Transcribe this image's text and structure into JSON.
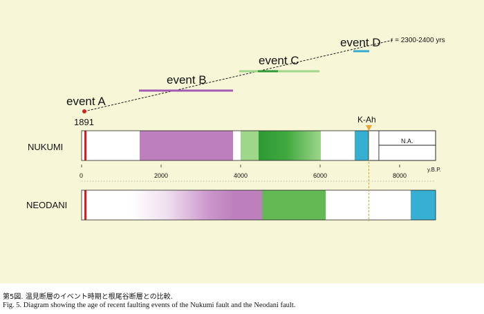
{
  "colors": {
    "panel_bg": "#f7f7d8",
    "event_b": "#a05ab4",
    "event_c_light": "#9ed68a",
    "event_c_dark": "#2e9a35",
    "event_d": "#33aad0",
    "purple_fill": "#bd80bd",
    "green_light": "#9ed68a",
    "green_dark": "#2e9a35",
    "green_mid": "#63b953",
    "blue_fill": "#37afd2",
    "marker_red": "#d7201f",
    "kah_orange": "#f2a22c"
  },
  "labels": {
    "event_a": "event A",
    "event_b": "event B",
    "event_c": "event C",
    "event_d": "event D",
    "recurrence": "r = 2300-2400 yrs",
    "year_1891": "1891",
    "kah": "K-Ah",
    "na": "N.A.",
    "nukumi": "NUKUMI",
    "neodani": "NEODANI",
    "unit": "y.B.P."
  },
  "axis": {
    "ticks": [
      "0",
      "2000",
      "4000",
      "6000",
      "8000"
    ]
  },
  "caption": {
    "ja": "第5図.  温見断層のイベント時期と根尾谷断層との比較.",
    "en": "Fig. 5.  Diagram showing the age of recent faulting events of the Nukumi fault and the Neodani fault."
  }
}
